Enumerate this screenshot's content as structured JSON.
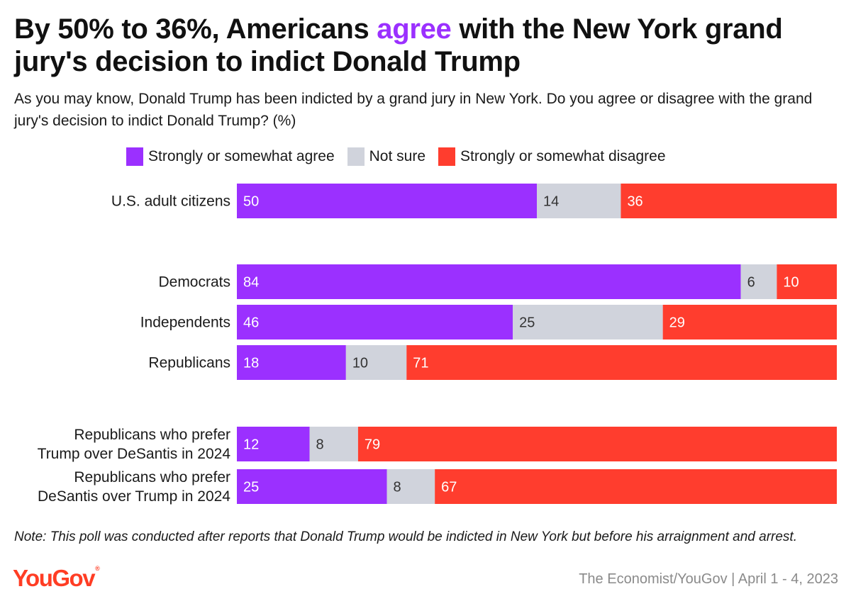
{
  "title": {
    "part1": "By 50% to 36%, Americans ",
    "highlight": "agree",
    "part2": " with the New York grand jury's decision to indict Donald Trump"
  },
  "subtitle": "As you may know, Donald Trump has been indicted by a grand jury in New York. Do you agree or disagree with the grand jury's decision to indict Donald Trump? (%)",
  "colors": {
    "agree": "#9b30ff",
    "not_sure": "#d0d3dc",
    "disagree": "#ff3d2e",
    "highlight": "#9b30ff"
  },
  "chart_data": {
    "type": "bar",
    "orientation": "horizontal-stacked-100",
    "categories": [
      "U.S. adult citizens",
      "Democrats",
      "Independents",
      "Republicans",
      "Republicans who prefer Trump over DeSantis in 2024",
      "Republicans who prefer DeSantis over Trump in 2024"
    ],
    "groups": [
      [
        0
      ],
      [
        1,
        2,
        3
      ],
      [
        4,
        5
      ]
    ],
    "series": [
      {
        "name": "Strongly or somewhat agree",
        "color": "#9b30ff",
        "values": [
          50,
          84,
          46,
          18,
          12,
          25
        ]
      },
      {
        "name": "Not sure",
        "color": "#d0d3dc",
        "values": [
          14,
          6,
          25,
          10,
          8,
          8
        ]
      },
      {
        "name": "Strongly or somewhat disagree",
        "color": "#ff3d2e",
        "values": [
          36,
          10,
          29,
          71,
          79,
          67
        ]
      }
    ],
    "legend_position": "top"
  },
  "note": "Note: This poll was conducted after reports that Donald Trump would be indicted in New York but before his arraignment and arrest.",
  "logo": {
    "text": "YouGov",
    "mark": "®"
  },
  "source": "The Economist/YouGov | April 1 - 4, 2023"
}
